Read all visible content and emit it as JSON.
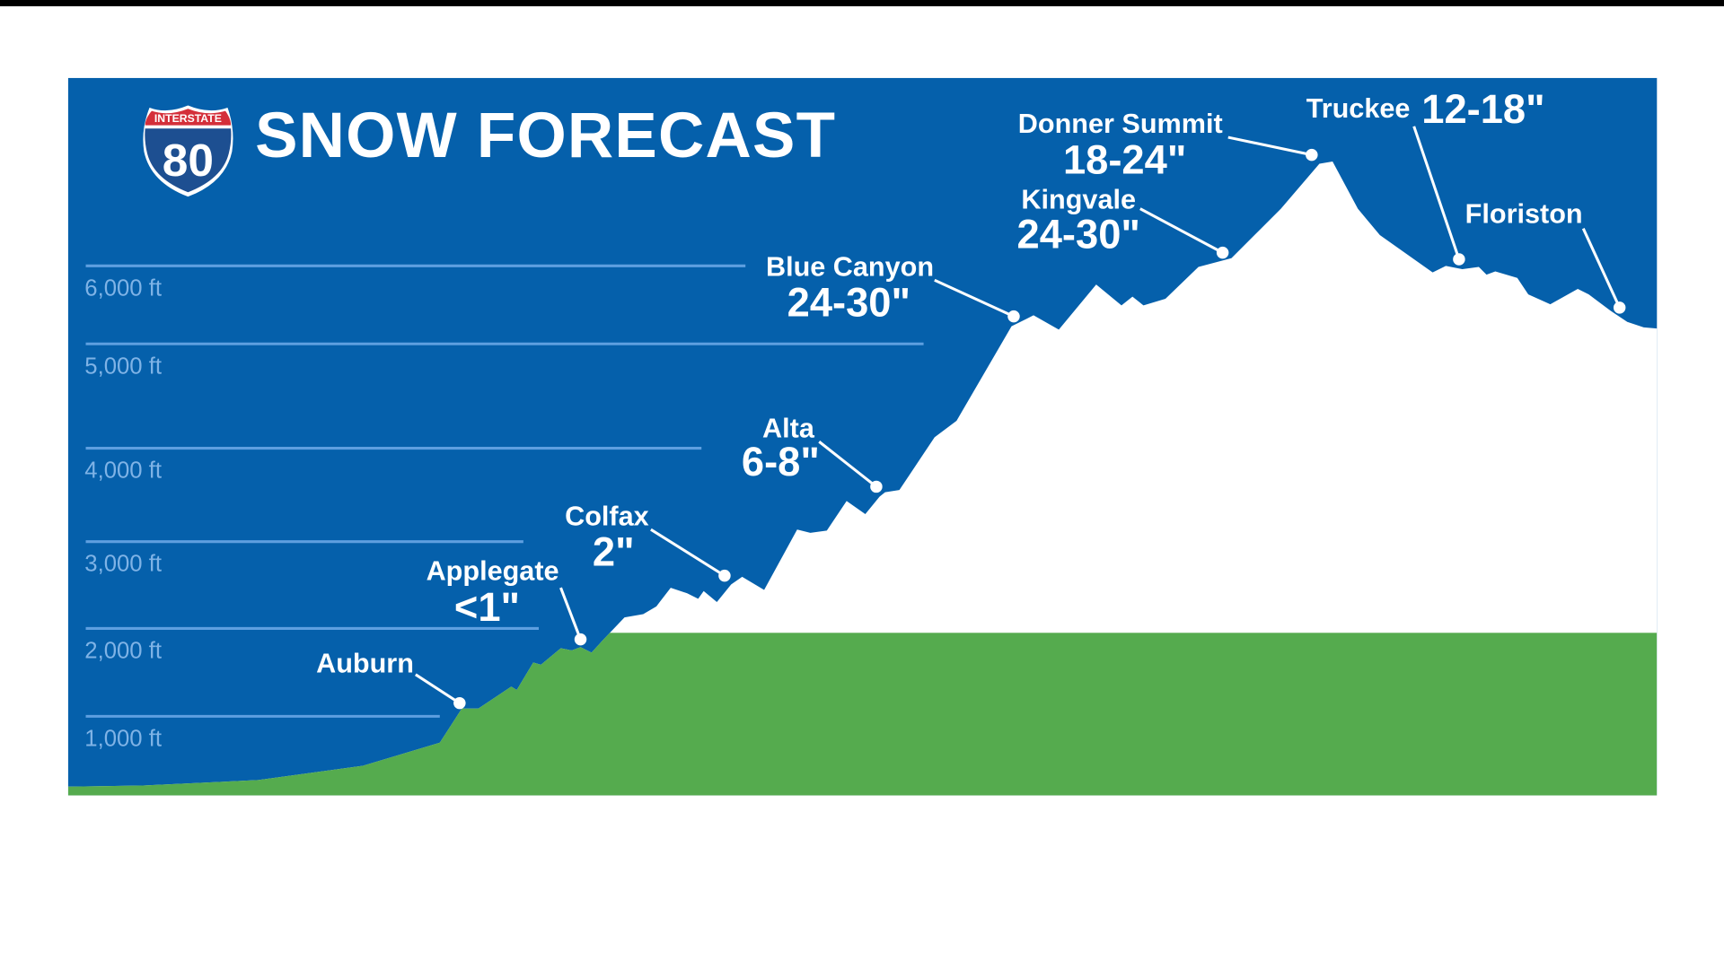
{
  "title": "SNOW FORECAST",
  "shield": {
    "top_text": "INTERSTATE",
    "number": "80"
  },
  "colors": {
    "sky": "#0560ab",
    "snow": "#ffffff",
    "ground": "#55ab4e",
    "gridline": "#5e9fe0",
    "tick_label": "#7fb3e6",
    "shield_red": "#d42f3a",
    "shield_blue": "#1d4f91"
  },
  "chart_data": {
    "type": "area",
    "title": "SNOW FORECAST",
    "ylabel": "",
    "xlabel": "",
    "y_ticks": [
      "1,000 ft",
      "2,000 ft",
      "3,000 ft",
      "4,000 ft",
      "5,000 ft",
      "6,000 ft"
    ],
    "grid": true,
    "locations": [
      {
        "name": "Auburn",
        "snow": ""
      },
      {
        "name": "Applegate",
        "snow": "<1\""
      },
      {
        "name": "Colfax",
        "snow": "2\""
      },
      {
        "name": "Alta",
        "snow": "6-8\""
      },
      {
        "name": "Blue Canyon",
        "snow": "24-30\""
      },
      {
        "name": "Kingvale",
        "snow": "24-30\""
      },
      {
        "name": "Donner Summit",
        "snow": "18-24\""
      },
      {
        "name": "Truckee",
        "snow": "12-18\""
      },
      {
        "name": "Floriston",
        "snow": ""
      }
    ]
  }
}
